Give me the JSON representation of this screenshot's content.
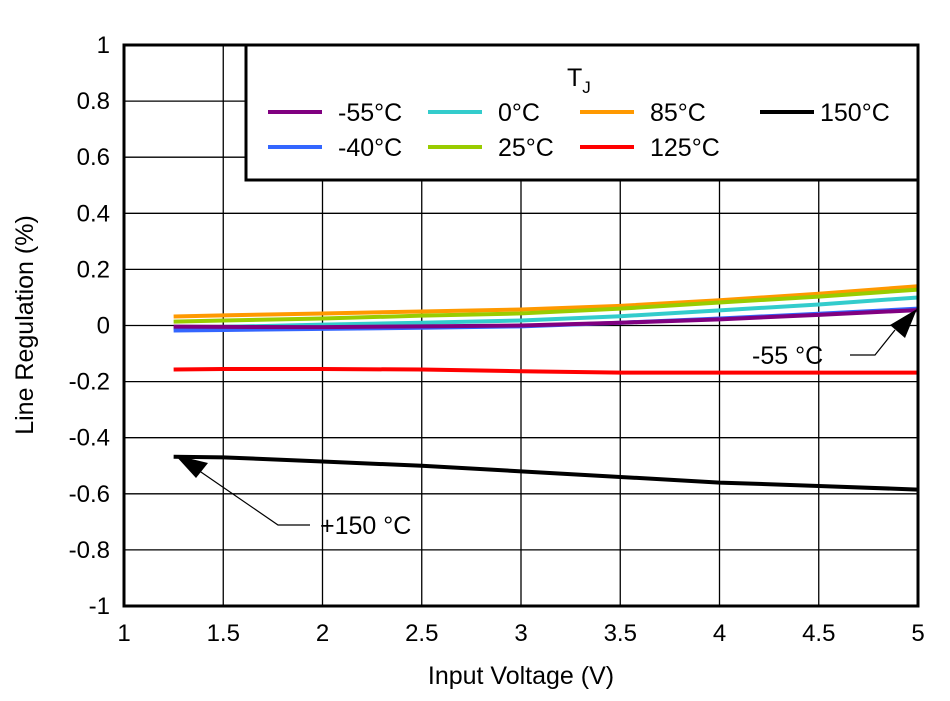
{
  "chart_data": {
    "type": "line",
    "xlabel": "Input Voltage (V)",
    "ylabel": "Line Regulation (%)",
    "xlim": [
      1,
      5
    ],
    "ylim": [
      -1,
      1
    ],
    "xticks": [
      "1",
      "1.5",
      "2",
      "2.5",
      "3",
      "3.5",
      "4",
      "4.5",
      "5"
    ],
    "yticks": [
      "1",
      "0.8",
      "0.6",
      "0.4",
      "0.2",
      "0",
      "-0.2",
      "-0.4",
      "-0.6",
      "-0.8",
      "-1"
    ],
    "grid": true,
    "legend": {
      "title": "T",
      "title_sub": "J",
      "placement": "top-right"
    },
    "x": [
      1.25,
      1.5,
      2,
      2.5,
      3,
      3.5,
      4,
      4.5,
      5
    ],
    "series": [
      {
        "name": "-55°C",
        "color": "#800080",
        "values": [
          -0.004,
          -0.005,
          -0.006,
          -0.003,
          0.0,
          0.01,
          0.022,
          0.038,
          0.055
        ]
      },
      {
        "name": "-40°C",
        "color": "#3366ff",
        "values": [
          -0.018,
          -0.016,
          -0.012,
          -0.008,
          -0.003,
          0.01,
          0.025,
          0.042,
          0.06
        ]
      },
      {
        "name": "0°C",
        "color": "#33cccc",
        "values": [
          -0.01,
          -0.005,
          0.003,
          0.01,
          0.018,
          0.033,
          0.054,
          0.075,
          0.1
        ]
      },
      {
        "name": "25°C",
        "color": "#99cc00",
        "values": [
          0.014,
          0.018,
          0.025,
          0.035,
          0.043,
          0.06,
          0.082,
          0.103,
          0.128
        ]
      },
      {
        "name": "85°C",
        "color": "#ff9900",
        "values": [
          0.032,
          0.036,
          0.043,
          0.05,
          0.057,
          0.07,
          0.09,
          0.113,
          0.14
        ]
      },
      {
        "name": "125°C",
        "color": "#ff0000",
        "values": [
          -0.157,
          -0.155,
          -0.155,
          -0.157,
          -0.163,
          -0.168,
          -0.168,
          -0.168,
          -0.168
        ]
      },
      {
        "name": "150°C",
        "color": "#000000",
        "values": [
          -0.468,
          -0.47,
          -0.485,
          -0.5,
          -0.52,
          -0.54,
          -0.56,
          -0.572,
          -0.585
        ]
      }
    ],
    "annotations": [
      {
        "text": "-55 °C",
        "x": 5,
        "y": 0.055
      },
      {
        "text": "+150 °C",
        "x": 1.25,
        "y": -0.468
      }
    ]
  }
}
